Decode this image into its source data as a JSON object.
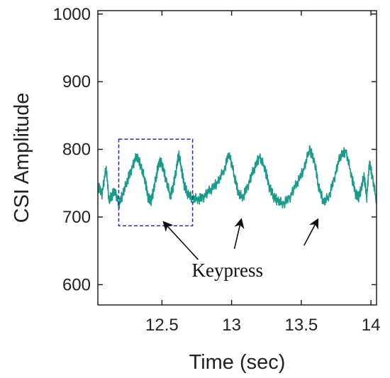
{
  "chart_data": {
    "type": "line",
    "title": "",
    "xlabel": "Time (sec)",
    "ylabel": "CSI Amplitude",
    "xlim": [
      12.04,
      14.04
    ],
    "ylim": [
      570,
      1005
    ],
    "xticks": [
      {
        "value": 12.5,
        "label": "12.5"
      },
      {
        "value": 13,
        "label": "13"
      },
      {
        "value": 13.5,
        "label": "13.5"
      },
      {
        "value": 14,
        "label": "14"
      }
    ],
    "yticks": [
      {
        "value": 600,
        "label": "600"
      },
      {
        "value": 700,
        "label": "700"
      },
      {
        "value": 800,
        "label": "800"
      },
      {
        "value": 900,
        "label": "900"
      },
      {
        "value": 1000,
        "label": "1000"
      }
    ],
    "grid": false,
    "legend": "none",
    "colors": {
      "series": "#1a9a8a",
      "box": "#1f2fa8",
      "arrow": "#111111",
      "axis": "#222222"
    },
    "series": [
      {
        "x": [
          12.04,
          12.07,
          12.1,
          12.12,
          12.14,
          12.16,
          12.19,
          12.22,
          12.25,
          12.28,
          12.32,
          12.35,
          12.38,
          12.4,
          12.42,
          12.44,
          12.46,
          12.48,
          12.5,
          12.53,
          12.56,
          12.58,
          12.6,
          12.62,
          12.64,
          12.66,
          12.68,
          12.72,
          12.76,
          12.8,
          12.85,
          12.9,
          12.95,
          12.98,
          13.02,
          13.05,
          13.08,
          13.12,
          13.16,
          13.2,
          13.24,
          13.27,
          13.3,
          13.33,
          13.37,
          13.42,
          13.47,
          13.52,
          13.56,
          13.6,
          13.62,
          13.66,
          13.7,
          13.74,
          13.78,
          13.82,
          13.86,
          13.89,
          13.91,
          13.93,
          13.95,
          13.97,
          13.99,
          14.01,
          14.04
        ],
        "y": [
          745,
          735,
          772,
          725,
          730,
          740,
          718,
          735,
          752,
          770,
          790,
          775,
          752,
          730,
          722,
          740,
          760,
          782,
          778,
          755,
          730,
          745,
          765,
          795,
          770,
          748,
          735,
          728,
          725,
          730,
          740,
          752,
          770,
          795,
          760,
          735,
          728,
          748,
          770,
          790,
          770,
          745,
          730,
          725,
          718,
          730,
          750,
          772,
          800,
          778,
          748,
          722,
          730,
          760,
          790,
          798,
          760,
          735,
          728,
          742,
          760,
          730,
          780,
          760,
          722
        ],
        "noise": [
          0.6,
          0.3,
          -0.8,
          0.9,
          -0.4,
          0.7,
          -0.6,
          0.5,
          0.2,
          -0.9,
          0.4,
          -0.3,
          0.8,
          -0.7,
          0.6,
          -0.2,
          0.9,
          -0.5,
          0.3,
          -0.8,
          0.7,
          -0.4,
          0.5,
          -0.6,
          0.8,
          -0.9,
          0.2,
          -0.3,
          0.6,
          -0.7,
          0.4,
          -0.5,
          0.9,
          -0.2,
          0.3,
          -0.6
        ]
      }
    ],
    "highlight_box": {
      "x": [
        12.19,
        12.72
      ],
      "y": [
        687,
        815
      ]
    },
    "annotation": {
      "text": "Keypress",
      "x": 12.97,
      "y": 612,
      "arrows": [
        {
          "from": [
            12.76,
            637
          ],
          "to": [
            12.51,
            693
          ]
        },
        {
          "from": [
            13.02,
            653
          ],
          "to": [
            13.07,
            697
          ]
        },
        {
          "from": [
            13.52,
            658
          ],
          "to": [
            13.62,
            697
          ]
        }
      ]
    }
  }
}
